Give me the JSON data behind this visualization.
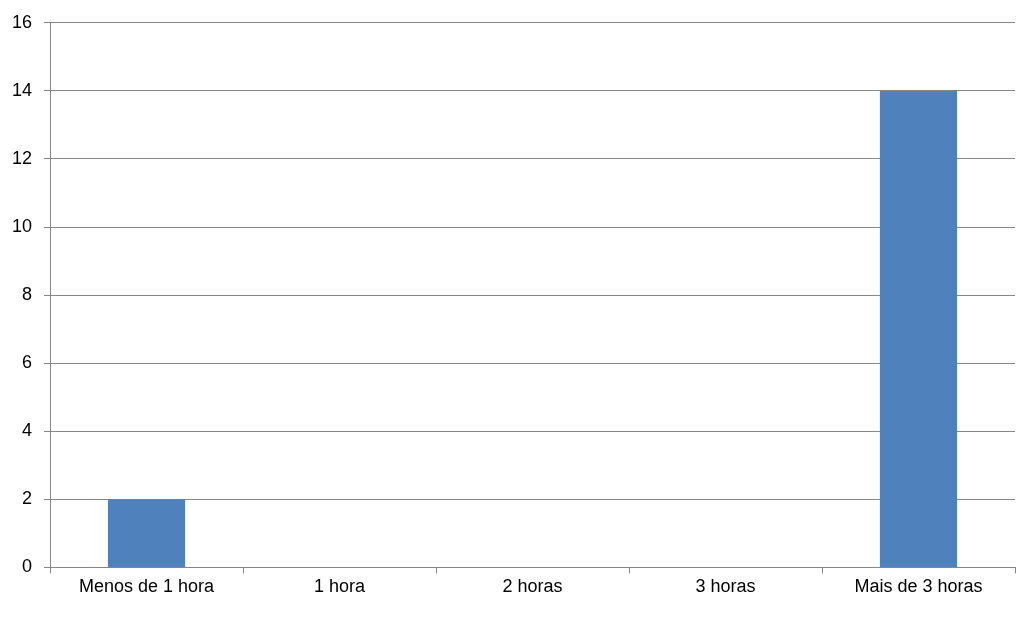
{
  "chart_data": {
    "type": "bar",
    "categories": [
      "Menos de 1 hora",
      "1 hora",
      "2 horas",
      "3 horas",
      "Mais de 3 horas"
    ],
    "values": [
      2,
      0,
      0,
      0,
      14
    ],
    "color": "#4f81bd",
    "ylim": [
      0,
      16
    ],
    "yticks": [
      0,
      2,
      4,
      6,
      8,
      10,
      12,
      14,
      16
    ],
    "grid": "y",
    "legend": false
  }
}
